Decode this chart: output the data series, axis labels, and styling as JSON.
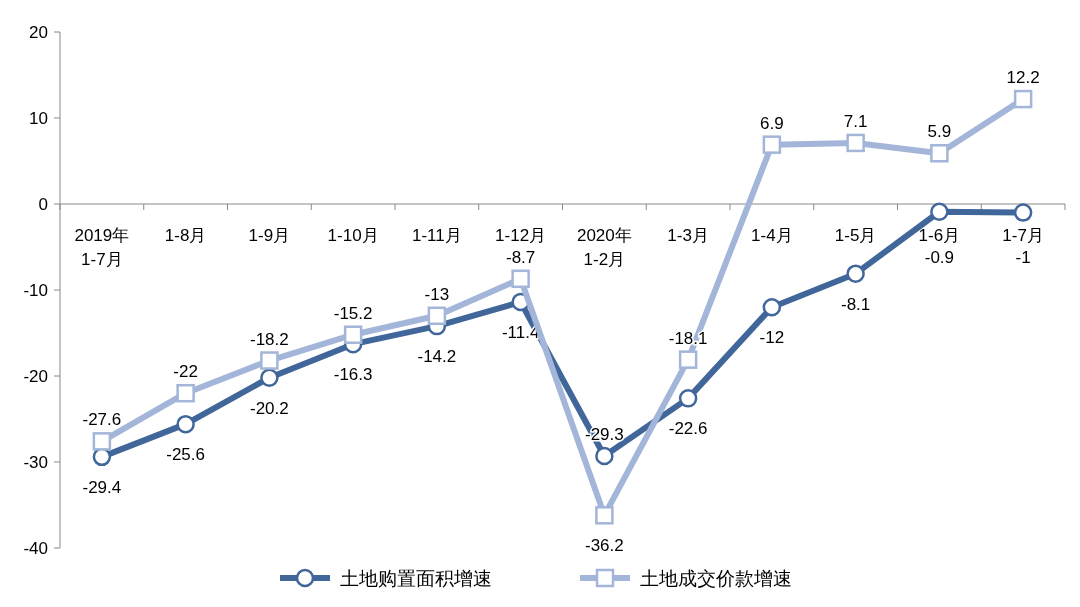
{
  "chart_data": {
    "type": "line",
    "categories": [
      "2019年\n1-7月",
      "1-8月",
      "1-9月",
      "1-10月",
      "1-11月",
      "1-12月",
      "2020年\n1-2月",
      "1-3月",
      "1-4月",
      "1-5月",
      "1-6月",
      "1-7月"
    ],
    "series": [
      {
        "name": "土地购置面积增速",
        "color": "#41669a",
        "marker": "circle",
        "values": [
          -29.4,
          -25.6,
          -20.2,
          -16.3,
          -14.2,
          -11.4,
          -29.3,
          -22.6,
          -12,
          -8.1,
          -0.9,
          -1
        ]
      },
      {
        "name": "土地成交价款增速",
        "color": "#a3b5d8",
        "marker": "square",
        "values": [
          -27.6,
          -22,
          -18.2,
          -15.2,
          -13,
          -8.7,
          -36.2,
          -18.1,
          6.9,
          7.1,
          5.9,
          12.2
        ]
      }
    ],
    "ylim": [
      -40,
      20
    ],
    "yticks": [
      -40,
      -30,
      -20,
      -10,
      0,
      10,
      20
    ],
    "grid": false,
    "legend": "bottom",
    "data_labels": true,
    "line_style": "solid"
  }
}
